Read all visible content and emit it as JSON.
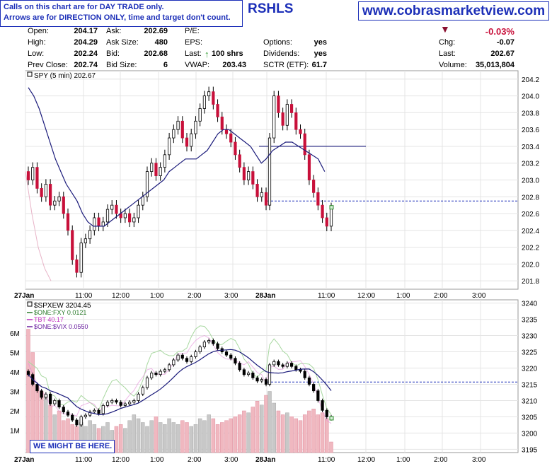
{
  "banner": {
    "line1": "Calls on this chart are for DAY TRADE only.",
    "line2": "Arrows are for DIRECTION ONLY, time and target don't count.",
    "site": "www.cobrasmarketview.com",
    "ticker": "RSHLS",
    "stamp": "WE MIGHT BE HERE."
  },
  "quote": {
    "open_label": "Open:",
    "open": "204.17",
    "high_label": "High:",
    "high": "204.29",
    "low_label": "Low:",
    "low": "202.24",
    "prev_label": "Prev Close:",
    "prev": "202.74",
    "ask_label": "Ask:",
    "ask": "202.69",
    "asksize_label": "Ask Size:",
    "asksize": "480",
    "bid_label": "Bid:",
    "bid": "202.68",
    "bidsize_label": "Bid Size:",
    "bidsize": "6",
    "pe_label": "P/E:",
    "eps_label": "EPS:",
    "last_label": "Last:",
    "last_size": "100 shrs",
    "vwap_label": "VWAP:",
    "vwap": "203.43",
    "options_label": "Options:",
    "options": "yes",
    "div_label": "Dividends:",
    "div": "yes",
    "sctr_label": "SCTR (ETF):",
    "sctr": "61.7",
    "pct": "-0.03%",
    "chg_label": "Chg:",
    "chg": "-0.07",
    "last2_label": "Last:",
    "last2": "202.67",
    "vol_label": "Volume:",
    "vol": "35,013,804"
  },
  "colors": {
    "up": "#ffffff",
    "down": "#c8103a",
    "ma": "#1a1a7a",
    "blue": "#1c2fb8",
    "green": "#5bb95b",
    "pink": "#e58ad8",
    "lpink": "#e8b4c8",
    "lgreen": "#a8d8a0"
  },
  "chart_data": [
    {
      "type": "line",
      "title": "SPY (5 min) 202.67",
      "symbol": "SPY",
      "yticks": [
        "204.2",
        "204.0",
        "203.8",
        "203.6",
        "203.4",
        "203.2",
        "203.0",
        "202.8",
        "202.6",
        "202.4",
        "202.2",
        "202.0",
        "201.8"
      ],
      "xticks": [
        "27Jan",
        "11:00",
        "12:00",
        "1:00",
        "2:00",
        "3:00",
        "28Jan",
        "11:00",
        "12:00",
        "1:00",
        "2:00",
        "3:00"
      ],
      "ylim": [
        201.7,
        204.3
      ],
      "hlines": [
        203.4,
        202.75
      ],
      "close": [
        203.0,
        203.15,
        202.9,
        202.8,
        202.95,
        202.7,
        202.75,
        202.8,
        202.6,
        202.4,
        202.05,
        201.9,
        202.25,
        202.3,
        202.4,
        202.55,
        202.45,
        202.5,
        202.65,
        202.7,
        202.6,
        202.55,
        202.6,
        202.5,
        202.55,
        202.7,
        202.8,
        203.1,
        203.2,
        203.05,
        203.15,
        203.3,
        203.5,
        203.6,
        203.7,
        203.5,
        203.4,
        203.55,
        203.7,
        203.85,
        204.0,
        204.05,
        203.9,
        203.75,
        203.6,
        203.55,
        203.45,
        203.3,
        203.15,
        203.0,
        203.1,
        202.95,
        202.8,
        202.85,
        202.7,
        203.5,
        204.0,
        203.8,
        203.65,
        203.9,
        203.8,
        203.6,
        203.55,
        203.3,
        203.0,
        202.85,
        202.7,
        202.55,
        202.45,
        202.67
      ],
      "ma": [
        204.1,
        204.0,
        203.85,
        203.65,
        203.45,
        203.25,
        203.1,
        202.95,
        202.85,
        202.75,
        202.6,
        202.5,
        202.45,
        202.45,
        202.45,
        202.5,
        202.55,
        202.6,
        202.65,
        202.7,
        202.75,
        202.8,
        202.85,
        202.9,
        202.95,
        203.0,
        203.1,
        203.15,
        203.2,
        203.25,
        203.25,
        203.25,
        203.3,
        203.35,
        203.45,
        203.55,
        203.6,
        203.6,
        203.55,
        203.5,
        203.45,
        203.4,
        203.3,
        203.2,
        203.25,
        203.35,
        203.4,
        203.45,
        203.45,
        203.4,
        203.35,
        203.3,
        203.25,
        203.1
      ],
      "ma_long": [
        203.1,
        202.6,
        202.2,
        201.95,
        201.8
      ]
    },
    {
      "type": "line",
      "title": "$SPXEW 3204.45",
      "symbol": "$SPXEW",
      "series": [
        {
          "name": "$ONE:FXY 0.0121"
        },
        {
          "name": "TBT 40.17"
        },
        {
          "name": "$ONE:$VIX 0.0550"
        }
      ],
      "yticks": [
        "3240",
        "3235",
        "3230",
        "3225",
        "3220",
        "3215",
        "3210",
        "3205",
        "3200",
        "3195"
      ],
      "vticks": [
        "6M",
        "5M",
        "4M",
        "3M",
        "2M",
        "1M"
      ],
      "xticks": [
        "27Jan",
        "11:00",
        "12:00",
        "1:00",
        "2:00",
        "3:00",
        "28Jan",
        "11:00",
        "12:00",
        "1:00",
        "2:00",
        "3:00"
      ],
      "ylim": [
        3194,
        3241
      ],
      "hline": 3215.7,
      "close": [
        3218.0,
        3215.0,
        3213.0,
        3211.0,
        3212.0,
        3209.0,
        3210.0,
        3208.0,
        3206.5,
        3205.5,
        3204.0,
        3202.5,
        3205.0,
        3205.5,
        3206.5,
        3207.0,
        3206.0,
        3208.5,
        3209.5,
        3210.0,
        3209.5,
        3208.5,
        3209.0,
        3209.5,
        3210.0,
        3212.0,
        3214.0,
        3217.0,
        3218.5,
        3218.0,
        3219.0,
        3219.5,
        3221.0,
        3222.5,
        3224.0,
        3223.0,
        3222.0,
        3223.5,
        3225.0,
        3226.5,
        3228.0,
        3228.5,
        3227.5,
        3226.0,
        3225.0,
        3224.0,
        3223.0,
        3221.5,
        3219.5,
        3218.0,
        3218.5,
        3217.0,
        3216.0,
        3216.5,
        3215.0,
        3221.0,
        3222.0,
        3221.0,
        3220.5,
        3221.5,
        3220.5,
        3219.5,
        3219.0,
        3217.0,
        3215.0,
        3213.0,
        3210.0,
        3207.0,
        3205.0,
        3204.45
      ],
      "volume_m": [
        6.2,
        5.0,
        3.3,
        3.0,
        2.8,
        2.3,
        1.8,
        2.0,
        1.5,
        1.6,
        1.3,
        1.2,
        1.4,
        1.2,
        1.5,
        1.3,
        1.1,
        1.2,
        1.4,
        1.0,
        1.2,
        1.3,
        1.1,
        1.5,
        1.8,
        1.6,
        1.4,
        1.2,
        1.5,
        1.7,
        1.4,
        1.3,
        1.6,
        1.4,
        1.3,
        1.5,
        1.4,
        1.2,
        1.3,
        1.6,
        1.5,
        1.8,
        1.6,
        1.3,
        1.4,
        1.5,
        1.6,
        1.7,
        1.8,
        2.0,
        1.9,
        2.2,
        2.5,
        2.3,
        2.8,
        3.0,
        2.4,
        2.0,
        1.8,
        1.9,
        1.7,
        1.6,
        1.5,
        1.8,
        2.0,
        2.1,
        1.8,
        1.9,
        1.6,
        0.4
      ]
    }
  ]
}
